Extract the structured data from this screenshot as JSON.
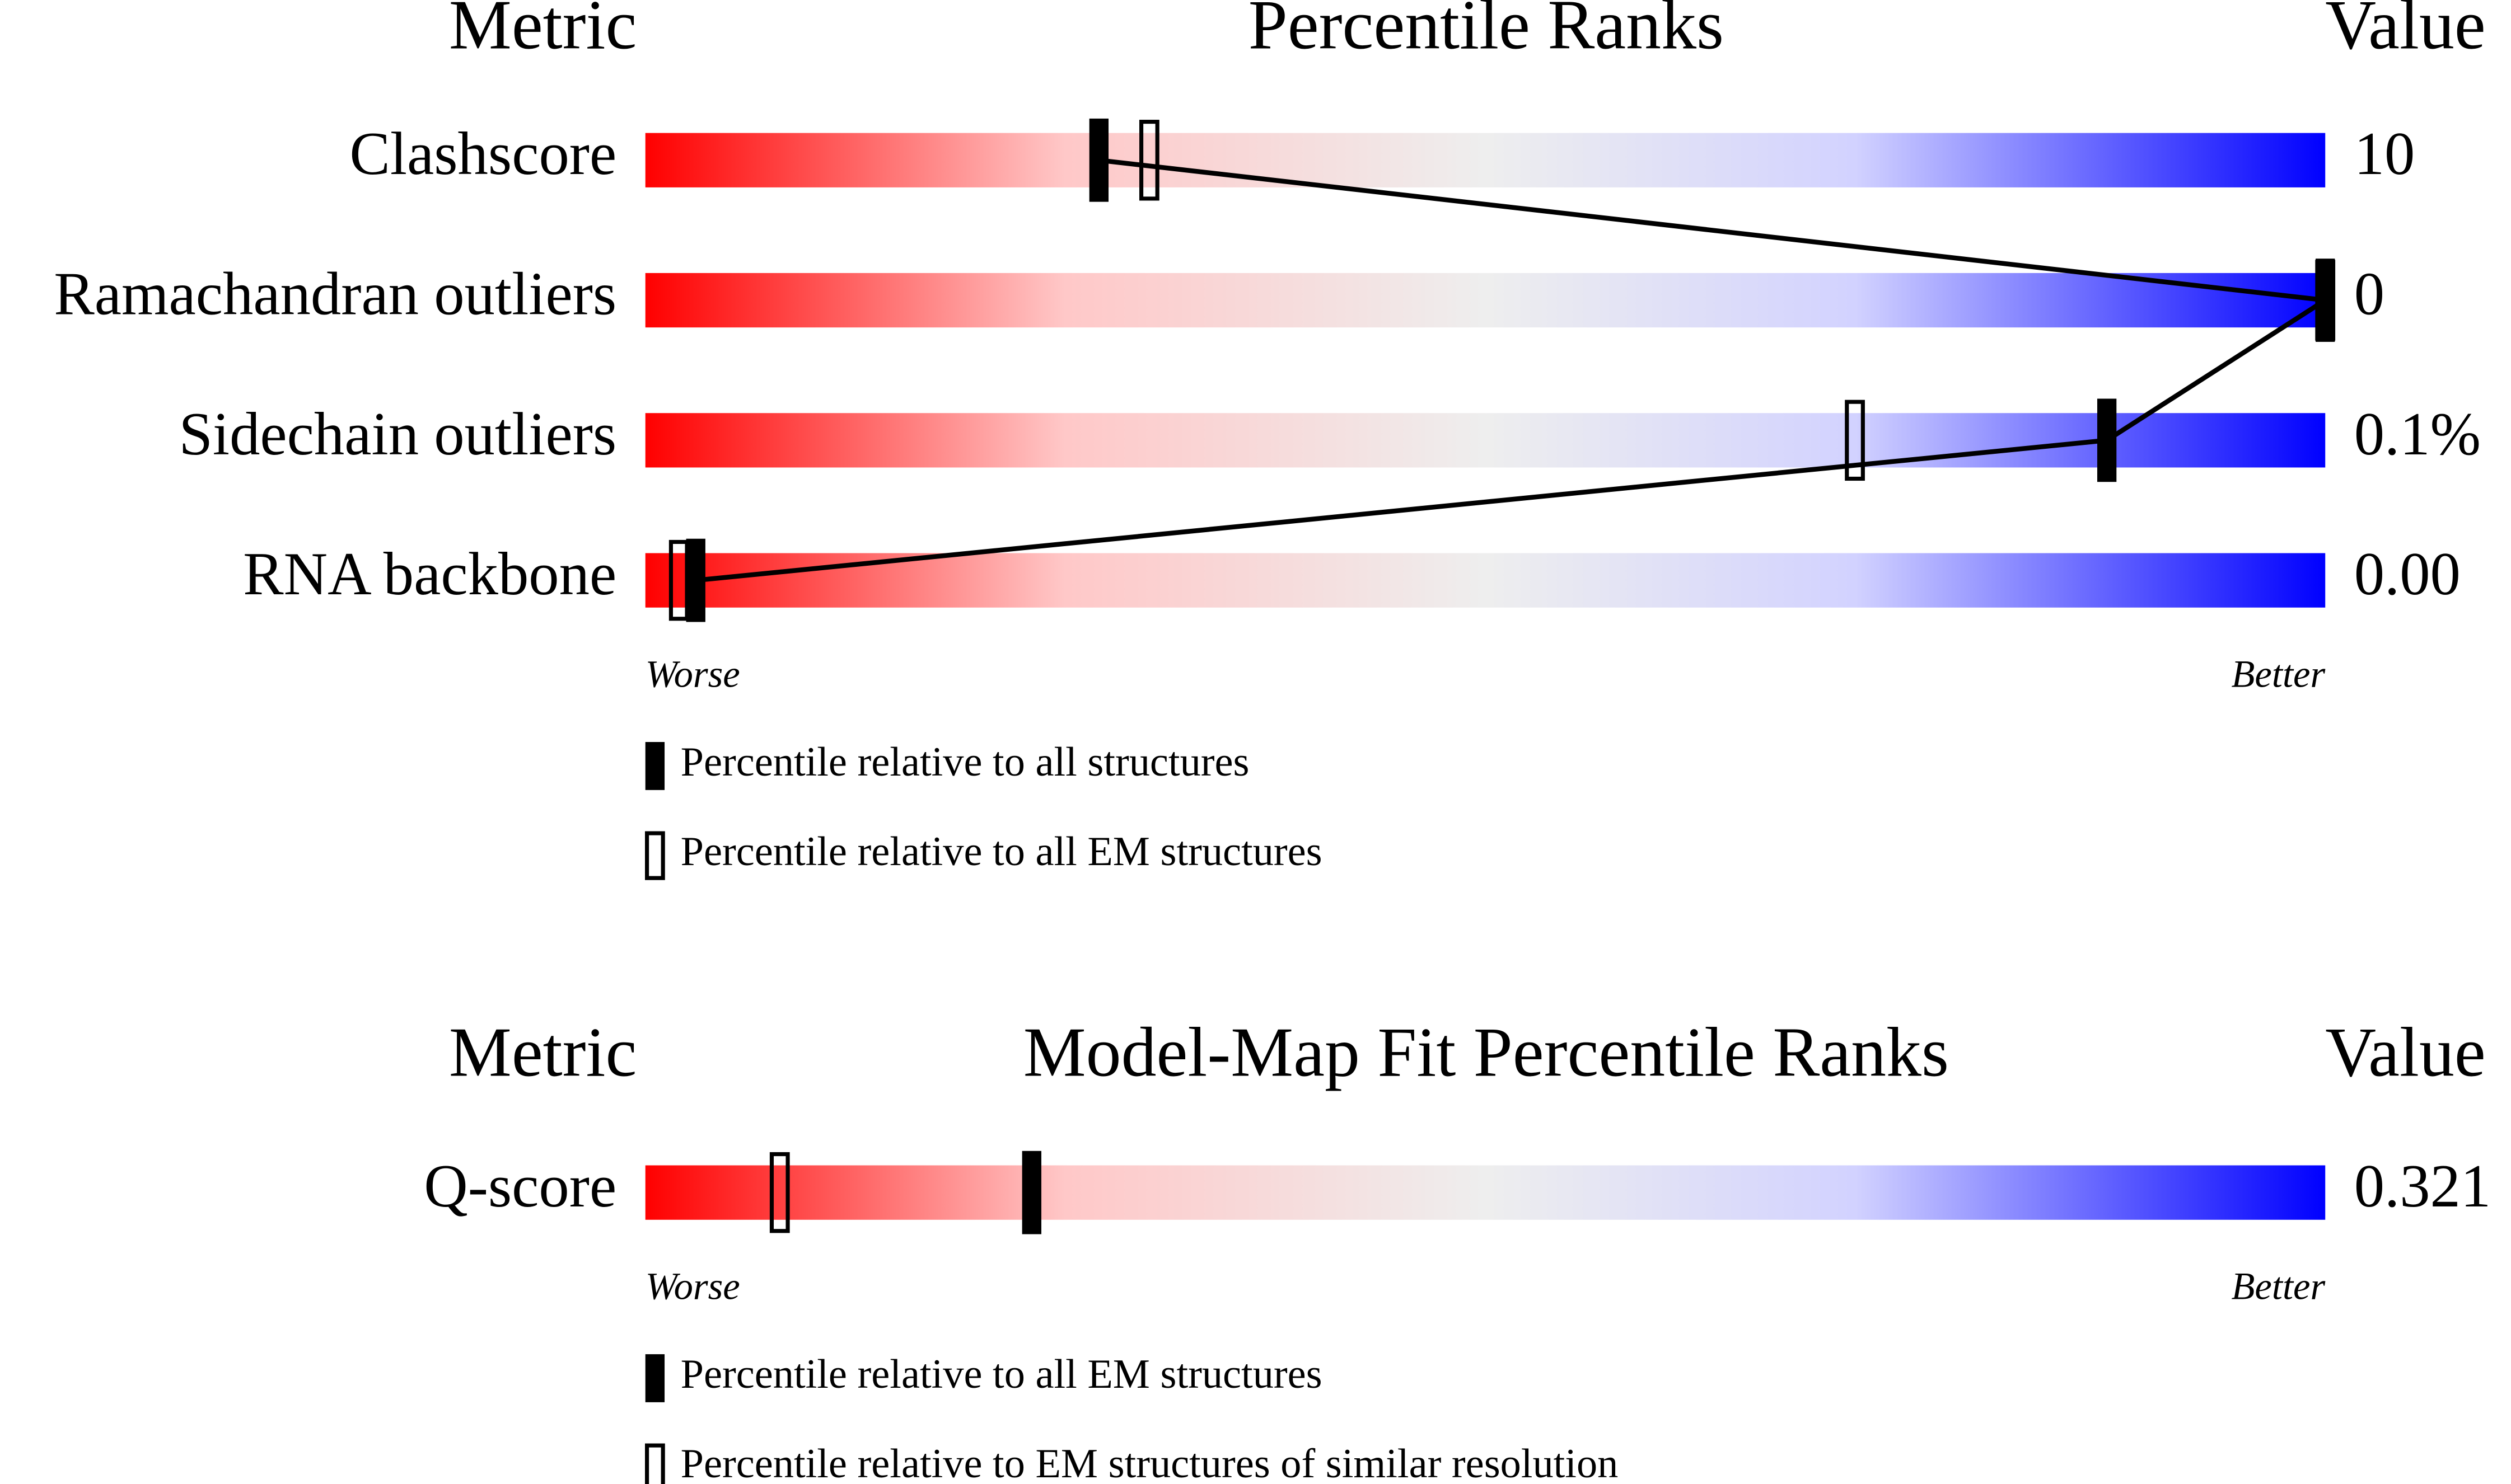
{
  "chart_data": [
    {
      "type": "percentile",
      "metric_header": "Metric",
      "title": "Percentile Ranks",
      "value_header": "Value",
      "categories": [
        "Clashscore",
        "Ramachandran outliers",
        "Sidechain outliers",
        "RNA backbone"
      ],
      "metric_values": [
        "10",
        "0",
        "0.1%",
        "0.00"
      ],
      "xlim": [
        0,
        100
      ],
      "low_label": "Worse",
      "high_label": "Better",
      "series": [
        {
          "name": "Percentile relative to all structures",
          "color": "#000000",
          "values": [
            27,
            100,
            87,
            3
          ]
        },
        {
          "name": "Percentile relative to all EM structures",
          "color": "#000000",
          "values": [
            30,
            100,
            72,
            2
          ]
        }
      ]
    },
    {
      "type": "percentile",
      "metric_header": "Metric",
      "title": "Model-Map Fit Percentile Ranks",
      "value_header": "Value",
      "categories": [
        "Q-score"
      ],
      "metric_values": [
        "0.321"
      ],
      "xlim": [
        0,
        100
      ],
      "low_label": "Worse",
      "high_label": "Better",
      "series": [
        {
          "name": "Percentile relative to all EM structures",
          "color": "#000000",
          "values": [
            23
          ]
        },
        {
          "name": "Percentile relative to EM structures of similar resolution",
          "color": "#000000",
          "values": [
            8
          ]
        }
      ]
    }
  ]
}
